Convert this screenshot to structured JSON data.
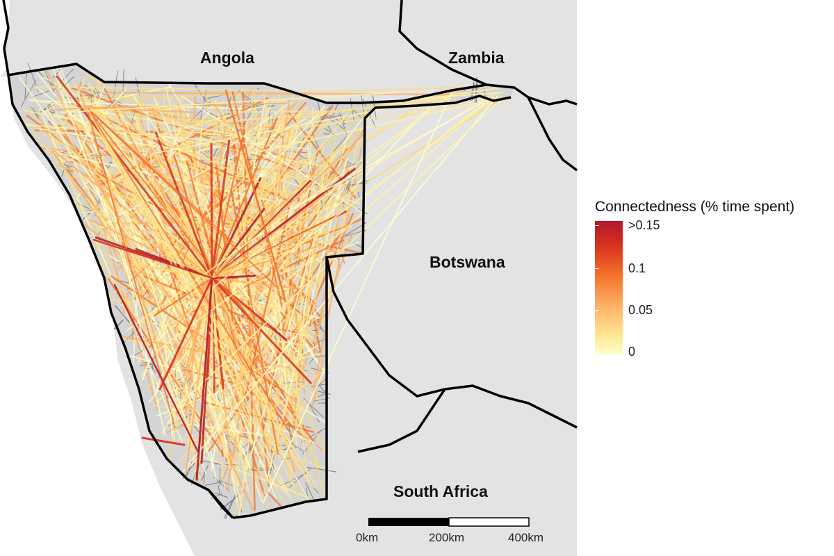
{
  "map": {
    "countries": [
      {
        "name": "Angola"
      },
      {
        "name": "Zambia"
      },
      {
        "name": "Botswana"
      },
      {
        "name": "South Africa"
      }
    ],
    "colors": {
      "background_land": "#e3e3e3",
      "study_region_fill": "#d6d6d6",
      "border": "#000000",
      "cell_border": "#7a7a7a"
    }
  },
  "legend": {
    "title": "Connectedness (% time spent)",
    "ticks": [
      ">0.15",
      "0.1",
      "0.05",
      "0"
    ],
    "tick_values": [
      0.15,
      0.1,
      0.05,
      0
    ],
    "color_scale": [
      "#ffffcc",
      "#fee391",
      "#fdae61",
      "#f4702a",
      "#d7301f",
      "#b2182b"
    ]
  },
  "scalebar": {
    "labels": [
      "0km",
      "200km",
      "400km"
    ]
  }
}
